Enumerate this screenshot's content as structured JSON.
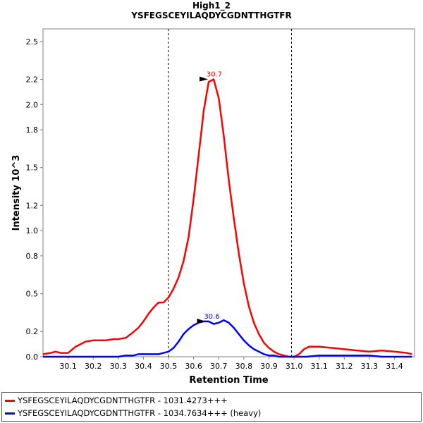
{
  "chart_data": {
    "type": "line",
    "title": "High1_2",
    "subtitle": "YSFEGSCEYILAQDYCGDNTTHGTFR",
    "xlabel": "Retention Time",
    "ylabel": "Intensity 10^3",
    "xlim": [
      30.0,
      31.48
    ],
    "ylim": [
      0,
      2.6
    ],
    "x_ticks": [
      "30.1",
      "30.2",
      "30.3",
      "30.4",
      "30.5",
      "30.6",
      "30.7",
      "30.8",
      "30.9",
      "31.0",
      "31.1",
      "31.2",
      "31.3",
      "31.4"
    ],
    "y_ticks": [
      "0.0",
      "0.2",
      "0.5",
      "0.8",
      "1.0",
      "1.2",
      "1.5",
      "1.8",
      "2.0",
      "2.2",
      "2.5"
    ],
    "vlines": [
      30.5,
      30.99
    ],
    "legend_position": "bottom",
    "series": [
      {
        "name": "YSFEGSCEYILAQDYCGDNTTHGTFR - 1031.4273+++",
        "color": "#ff0000",
        "peak_label": "30.7",
        "peak": [
          30.66,
          2.2
        ],
        "x": [
          30.0,
          30.03,
          30.05,
          30.07,
          30.1,
          30.13,
          30.15,
          30.17,
          30.2,
          30.23,
          30.25,
          30.28,
          30.3,
          30.33,
          30.35,
          30.38,
          30.4,
          30.42,
          30.44,
          30.46,
          30.48,
          30.5,
          30.52,
          30.54,
          30.56,
          30.58,
          30.6,
          30.62,
          30.64,
          30.66,
          30.68,
          30.7,
          30.72,
          30.74,
          30.76,
          30.78,
          30.8,
          30.82,
          30.84,
          30.86,
          30.88,
          30.9,
          30.92,
          30.94,
          30.96,
          30.98,
          31.0,
          31.02,
          31.04,
          31.06,
          31.08,
          31.1,
          31.15,
          31.2,
          31.25,
          31.3,
          31.35,
          31.4,
          31.45,
          31.47
        ],
        "values": [
          0.02,
          0.03,
          0.04,
          0.03,
          0.03,
          0.08,
          0.1,
          0.12,
          0.13,
          0.13,
          0.13,
          0.14,
          0.14,
          0.15,
          0.18,
          0.23,
          0.28,
          0.34,
          0.39,
          0.43,
          0.43,
          0.47,
          0.54,
          0.63,
          0.76,
          0.95,
          1.25,
          1.6,
          1.95,
          2.18,
          2.2,
          2.05,
          1.75,
          1.4,
          1.1,
          0.82,
          0.58,
          0.4,
          0.27,
          0.18,
          0.11,
          0.07,
          0.04,
          0.02,
          0.01,
          0.0,
          0.0,
          0.02,
          0.06,
          0.08,
          0.08,
          0.08,
          0.07,
          0.06,
          0.05,
          0.04,
          0.05,
          0.04,
          0.03,
          0.02
        ]
      },
      {
        "name": "YSFEGSCEYILAQDYCGDNTTHGTFR - 1034.7634+++ (heavy)",
        "color": "#0000ff",
        "peak_label": "30.6",
        "peak": [
          30.65,
          0.28
        ],
        "x": [
          30.0,
          30.1,
          30.2,
          30.3,
          30.33,
          30.36,
          30.38,
          30.4,
          30.43,
          30.46,
          30.48,
          30.5,
          30.52,
          30.54,
          30.56,
          30.58,
          30.6,
          30.62,
          30.64,
          30.66,
          30.68,
          30.7,
          30.72,
          30.74,
          30.76,
          30.78,
          30.8,
          30.82,
          30.84,
          30.86,
          30.88,
          30.9,
          30.92,
          30.94,
          30.96,
          30.98,
          31.0,
          31.05,
          31.1,
          31.15,
          31.2,
          31.25,
          31.3,
          31.35,
          31.4,
          31.47
        ],
        "values": [
          0.0,
          0.0,
          0.0,
          0.0,
          0.01,
          0.01,
          0.02,
          0.02,
          0.02,
          0.02,
          0.03,
          0.04,
          0.07,
          0.12,
          0.18,
          0.22,
          0.25,
          0.27,
          0.28,
          0.28,
          0.26,
          0.27,
          0.29,
          0.27,
          0.23,
          0.18,
          0.13,
          0.09,
          0.06,
          0.04,
          0.02,
          0.01,
          0.01,
          0.0,
          0.0,
          0.0,
          0.0,
          0.0,
          0.01,
          0.01,
          0.01,
          0.01,
          0.01,
          0.0,
          0.0,
          0.0
        ]
      }
    ]
  }
}
